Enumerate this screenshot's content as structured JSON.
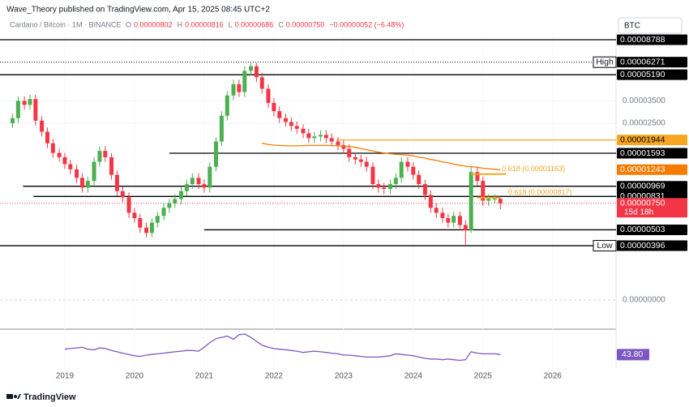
{
  "header": {
    "publisher": "Wave_Theory published on TradingView.com, Apr 15, 2025 08:45 UTC+2",
    "symbol": "Cardano / Bitcoin · 1M · BINANCE",
    "ohlc": [
      {
        "key": "O",
        "label": "0.00000802"
      },
      {
        "key": "H",
        "label": "0.00000816"
      },
      {
        "key": "L",
        "label": "0.00000686"
      },
      {
        "key": "C",
        "label": "0.00000750"
      }
    ],
    "change": "−0.00000052 (−6.48%)",
    "currency": "BTC",
    "brand": "TradingView"
  },
  "chart_data": {
    "type": "candlestick",
    "log_scale": true,
    "up_color": "#4caf50",
    "down_color": "#f23645",
    "x": [
      2018.25,
      2018.33,
      2018.42,
      2018.5,
      2018.58,
      2018.67,
      2018.75,
      2018.83,
      2018.92,
      2019,
      2019.08,
      2019.17,
      2019.25,
      2019.33,
      2019.42,
      2019.5,
      2019.58,
      2019.67,
      2019.75,
      2019.83,
      2019.92,
      2020,
      2020.08,
      2020.17,
      2020.25,
      2020.33,
      2020.42,
      2020.5,
      2020.58,
      2020.67,
      2020.75,
      2020.83,
      2020.92,
      2021,
      2021.08,
      2021.17,
      2021.25,
      2021.33,
      2021.42,
      2021.5,
      2021.58,
      2021.67,
      2021.75,
      2021.83,
      2021.92,
      2022,
      2022.08,
      2022.17,
      2022.25,
      2022.33,
      2022.42,
      2022.5,
      2022.58,
      2022.67,
      2022.75,
      2022.83,
      2022.92,
      2023,
      2023.08,
      2023.17,
      2023.25,
      2023.33,
      2023.42,
      2023.5,
      2023.58,
      2023.67,
      2023.75,
      2023.83,
      2023.92,
      2024,
      2024.08,
      2024.17,
      2024.25,
      2024.33,
      2024.42,
      2024.5,
      2024.58,
      2024.67,
      2024.75,
      2024.83,
      2024.92,
      2025,
      2025.08,
      2025.17,
      2025.25
    ],
    "open": [
      2.5e-05,
      2.7e-05,
      3.5e-05,
      3.3e-05,
      3.6e-05,
      2.6e-05,
      2.2e-05,
      1.85e-05,
      1.6e-05,
      1.5e-05,
      1.35e-05,
      1.25e-05,
      1.1e-05,
      9.5e-06,
      1.05e-05,
      1.4e-05,
      1.65e-05,
      1.5e-05,
      1.15e-05,
      9e-06,
      8.2e-06,
      6.5e-06,
      6e-06,
      5.2e-06,
      4.8e-06,
      5.6e-06,
      6.2e-06,
      7e-06,
      7.5e-06,
      8e-06,
      9e-06,
      1e-05,
      1.1e-05,
      1e-05,
      9.5e-06,
      1.3e-05,
      1.9e-05,
      2.8e-05,
      3.8e-05,
      4.5e-05,
      4e-05,
      5.5e-05,
      5.9e-05,
      5e-05,
      4.2e-05,
      3.4e-05,
      3e-05,
      2.7e-05,
      2.55e-05,
      2.4e-05,
      2.3e-05,
      2.15e-05,
      2e-05,
      2.05e-05,
      2.1e-05,
      2e-05,
      1.9e-05,
      1.8e-05,
      1.7e-05,
      1.5e-05,
      1.45e-05,
      1.4e-05,
      1.3e-05,
      1e-05,
      9.5e-06,
      9.3e-06,
      1e-05,
      1.1e-05,
      1.4e-05,
      1.3e-05,
      1.15e-05,
      1e-05,
      8.5e-06,
      7e-06,
      6.5e-06,
      6e-06,
      5.6e-06,
      6.2e-06,
      5.4e-06,
      5e-06,
      1.2e-05,
      1.05e-05,
      7.8e-06,
      8.02e-06,
      8.02e-06
    ],
    "high": [
      2.89e-05,
      3.75e-05,
      3.75e-05,
      3.85e-05,
      3.85e-05,
      2.78e-05,
      2.35e-05,
      1.98e-05,
      1.71e-05,
      1.6e-05,
      1.44e-05,
      1.34e-05,
      1.18e-05,
      1.12e-05,
      1.5e-05,
      1.77e-05,
      1.77e-05,
      1.6e-05,
      1.23e-05,
      9.6e-06,
      8.8e-06,
      7e-06,
      6.4e-06,
      5.6e-06,
      6e-06,
      6.6e-06,
      7.5e-06,
      8e-06,
      8.6e-06,
      9.6e-06,
      1.07e-05,
      1.18e-05,
      1.18e-05,
      1.07e-05,
      1.39e-05,
      2.03e-05,
      3e-05,
      4.07e-05,
      4.82e-05,
      4.82e-05,
      5.89e-05,
      6.271e-05,
      6.2e-05,
      5.35e-05,
      4.49e-05,
      3.64e-05,
      3.21e-05,
      2.89e-05,
      2.73e-05,
      2.57e-05,
      2.46e-05,
      2.3e-05,
      2.19e-05,
      2.25e-05,
      2.25e-05,
      2.14e-05,
      2.03e-05,
      1.93e-05,
      1.82e-05,
      1.61e-05,
      1.55e-05,
      1.5e-05,
      1.39e-05,
      1.07e-05,
      1.02e-05,
      1.07e-05,
      1.18e-05,
      1.5e-05,
      1.5e-05,
      1.39e-05,
      1.23e-05,
      1.07e-05,
      9.1e-06,
      7.5e-06,
      7e-06,
      6.4e-06,
      6.6e-06,
      6.6e-06,
      5.8e-06,
      1.3e-05,
      1.29e-05,
      1.12e-05,
      8.6e-06,
      8.6e-06,
      8.16e-06
    ],
    "low": [
      2.33e-05,
      2.51e-05,
      3.07e-05,
      3.07e-05,
      2.42e-05,
      2.05e-05,
      1.72e-05,
      1.49e-05,
      1.4e-05,
      1.26e-05,
      1.16e-05,
      1.02e-05,
      8.8e-06,
      8.8e-06,
      9.8e-06,
      1.3e-05,
      1.4e-05,
      1.07e-05,
      8.4e-06,
      7.6e-06,
      6e-06,
      5.6e-06,
      4.8e-06,
      4.5e-06,
      4.5e-06,
      5.2e-06,
      5.8e-06,
      6.5e-06,
      7e-06,
      7.4e-06,
      8.4e-06,
      9.3e-06,
      9.3e-06,
      8.8e-06,
      8.8e-06,
      1.21e-05,
      1.77e-05,
      2.6e-05,
      3.53e-05,
      3.72e-05,
      3.72e-05,
      5.12e-05,
      4.65e-05,
      3.91e-05,
      3.16e-05,
      2.79e-05,
      2.51e-05,
      2.37e-05,
      2.23e-05,
      2.14e-05,
      2e-05,
      1.86e-05,
      1.86e-05,
      1.91e-05,
      1.86e-05,
      1.77e-05,
      1.67e-05,
      1.58e-05,
      1.4e-05,
      1.35e-05,
      1.3e-05,
      1.21e-05,
      9.3e-06,
      8.8e-06,
      8.6e-06,
      8.6e-06,
      9.3e-06,
      1.02e-05,
      1.21e-05,
      1.07e-05,
      9.3e-06,
      7.9e-06,
      6.5e-06,
      6e-06,
      5.6e-06,
      5.2e-06,
      5.2e-06,
      5e-06,
      3.96e-06,
      4.8e-06,
      9.8e-06,
      7.2e-06,
      7.2e-06,
      7.5e-06,
      6.86e-06
    ],
    "close": [
      2.7e-05,
      3.5e-05,
      3.3e-05,
      3.6e-05,
      2.6e-05,
      2.2e-05,
      1.85e-05,
      1.6e-05,
      1.5e-05,
      1.35e-05,
      1.25e-05,
      1.1e-05,
      9.5e-06,
      1.05e-05,
      1.4e-05,
      1.65e-05,
      1.5e-05,
      1.15e-05,
      9e-06,
      8.2e-06,
      6.5e-06,
      6e-06,
      5.2e-06,
      4.8e-06,
      5.6e-06,
      6.2e-06,
      7e-06,
      7.5e-06,
      8e-06,
      9e-06,
      1e-05,
      1.1e-05,
      1e-05,
      9.5e-06,
      1.3e-05,
      1.9e-05,
      2.8e-05,
      3.8e-05,
      4.5e-05,
      4e-05,
      5.5e-05,
      5.9e-05,
      5e-05,
      4.2e-05,
      3.4e-05,
      3e-05,
      2.7e-05,
      2.55e-05,
      2.4e-05,
      2.3e-05,
      2.15e-05,
      2e-05,
      2.05e-05,
      2.1e-05,
      2e-05,
      1.9e-05,
      1.8e-05,
      1.7e-05,
      1.5e-05,
      1.45e-05,
      1.4e-05,
      1.3e-05,
      1e-05,
      9.5e-06,
      9.3e-06,
      1e-05,
      1.1e-05,
      1.4e-05,
      1.3e-05,
      1.15e-05,
      1e-05,
      8.5e-06,
      7e-06,
      6.5e-06,
      6e-06,
      5.6e-06,
      6.2e-06,
      5.4e-06,
      5e-06,
      1.2e-05,
      1.05e-05,
      7.8e-06,
      8.02e-06,
      8.02e-06,
      7.5e-06
    ],
    "xlim": [
      2018.07,
      2026.91
    ],
    "xticks": [
      2019,
      2020,
      2021,
      2022,
      2023,
      2024,
      2025,
      2026
    ],
    "ylim": [
      2.85e-06,
      9.81e-05
    ],
    "yticks": [
      {
        "value": 3.5e-05,
        "label": "0.00003500"
      },
      {
        "value": 2.5e-05,
        "label": "0.00002500"
      }
    ],
    "overlays": [
      {
        "color": "#f57c00",
        "values": [
          null,
          null,
          null,
          null,
          null,
          null,
          null,
          null,
          null,
          null,
          null,
          null,
          null,
          null,
          null,
          null,
          null,
          null,
          null,
          null,
          null,
          null,
          null,
          null,
          null,
          null,
          null,
          null,
          null,
          null,
          null,
          null,
          null,
          null,
          null,
          null,
          null,
          null,
          null,
          null,
          null,
          null,
          null,
          1.85e-05,
          1.82e-05,
          1.8e-05,
          1.79e-05,
          1.78e-05,
          1.78e-05,
          1.78e-05,
          1.785e-05,
          1.79e-05,
          1.79e-05,
          1.79e-05,
          1.79e-05,
          1.785e-05,
          1.78e-05,
          1.77e-05,
          1.76e-05,
          1.74e-05,
          1.71e-05,
          1.68e-05,
          1.65e-05,
          1.62e-05,
          1.6e-05,
          1.58e-05,
          1.57e-05,
          1.56e-05,
          1.55e-05,
          1.53e-05,
          1.5e-05,
          1.48e-05,
          1.45e-05,
          1.43e-05,
          1.4e-05,
          1.38e-05,
          1.35e-05,
          1.33e-05,
          1.31e-05,
          1.3e-05,
          1.29e-05,
          1.27e-05,
          1.26e-05,
          1.25e-05,
          1.243e-05
        ]
      }
    ],
    "levels": [
      {
        "value": 8.788e-05,
        "label": "0.00008788",
        "color": "#000000",
        "style": "solid"
      },
      {
        "value": 6.271e-05,
        "label": "0.00006271",
        "tag": "High",
        "color": "#000000",
        "style": "dotted"
      },
      {
        "value": 5.19e-05,
        "label": "0.00005190",
        "color": "#000000",
        "style": "solid"
      },
      {
        "value": 1.944e-05,
        "label": "0.00001944",
        "color": "#f5a623",
        "style": "solid",
        "from": 2022.9
      },
      {
        "value": 1.593e-05,
        "label": "0.00001593",
        "color": "#000000",
        "style": "solid",
        "from": 2020.5
      },
      {
        "value": 1.243e-05,
        "label": "0.00001243",
        "color": "#f57c00",
        "style": "none"
      },
      {
        "value": 9.69e-06,
        "label": "0.00000969",
        "color": "#000000",
        "style": "solid",
        "from": 2018.4
      },
      {
        "value": 8.31e-06,
        "label": "0.00000831",
        "color": "#000000",
        "style": "solid",
        "from": 2018.55
      },
      {
        "value": 7.5e-06,
        "label": "0.00000750",
        "countdown": "15d 18h",
        "color": "#f23645",
        "style": "dotted"
      },
      {
        "value": 5.03e-06,
        "label": "0.00000503",
        "color": "#000000",
        "style": "solid",
        "from": 2021.0
      },
      {
        "value": 3.96e-06,
        "label": "0.00000396",
        "color": "#000000",
        "style": "solid"
      },
      {
        "value": 3.96e-06,
        "label": "0.00000396",
        "tag": "Low",
        "color": "#000000",
        "style": "none"
      }
    ],
    "annotations": [
      {
        "text": "0.618 (0.00001163)",
        "value": 1.163e-05,
        "from": 2024.83,
        "to": 2025.33,
        "color": "#f5a623"
      },
      {
        "text": "0.618 (0.00000817)",
        "value": 8.17e-06,
        "from": 2024.92,
        "to": 2025.25,
        "color": "#f5a623"
      }
    ],
    "macd": {
      "zero": {
        "value": 0,
        "label": "0.00000000"
      }
    },
    "rsi": {
      "color": "#7e57c2",
      "ylim": [
        22,
        80
      ],
      "last_label": "43.80",
      "values": [
        null,
        null,
        null,
        null,
        null,
        null,
        null,
        null,
        null,
        52,
        53,
        54,
        55,
        52,
        51,
        54,
        53,
        50,
        48,
        46,
        44,
        42,
        41,
        43,
        44,
        45,
        46,
        47,
        48,
        49,
        50,
        50,
        49,
        55,
        62,
        68,
        70,
        72,
        67,
        74,
        75,
        70,
        64,
        58,
        55,
        53,
        52,
        51,
        50,
        49,
        47,
        48,
        49,
        48,
        47,
        46,
        45,
        43,
        43,
        42,
        41,
        40,
        40,
        40,
        41,
        42,
        45,
        44,
        43,
        42,
        40,
        38,
        37,
        37,
        36,
        37,
        36,
        35,
        36,
        48,
        46,
        45,
        45,
        45,
        43.8
      ]
    }
  }
}
